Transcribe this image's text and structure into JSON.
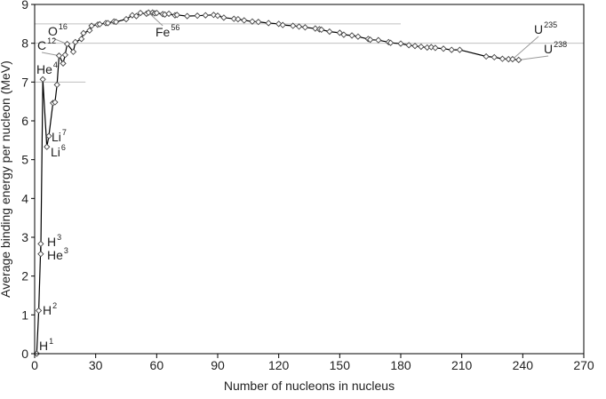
{
  "chart_data": {
    "type": "scatter",
    "title": "",
    "xlabel": "Number of nucleons in nucleus",
    "ylabel": "Average binding energy per nucleon (MeV)",
    "xlim": [
      0,
      270
    ],
    "ylim": [
      0,
      9
    ],
    "xticks": [
      "0",
      "30",
      "60",
      "90",
      "120",
      "150",
      "180",
      "210",
      "240",
      "270"
    ],
    "yticks": [
      "0",
      "1",
      "2",
      "3",
      "4",
      "5",
      "6",
      "7",
      "8",
      "9"
    ],
    "grid": "partial horizontal reference lines",
    "legend": "none",
    "colors": {
      "line": "#000000",
      "marker_fill": "#ffffff",
      "marker_stroke": "#444444",
      "gridline": "#c0c0c0",
      "leader": "#9a9a9a"
    },
    "series": [
      {
        "x": [
          1,
          2,
          3,
          3,
          4,
          6,
          7,
          9,
          10,
          11,
          12,
          14,
          15,
          16,
          19,
          20,
          23,
          24,
          27,
          28,
          31,
          32,
          35,
          36,
          39,
          40,
          45,
          48,
          50,
          52,
          55,
          56,
          58,
          59,
          60,
          63,
          64,
          66,
          69,
          70,
          75,
          80,
          84,
          88,
          90,
          93,
          98,
          100,
          103,
          107,
          110,
          115,
          120,
          122,
          127,
          130,
          133,
          138,
          140,
          141,
          145,
          150,
          152,
          156,
          159,
          164,
          165,
          169,
          174,
          175,
          180,
          184,
          187,
          190,
          193,
          195,
          197,
          201,
          205,
          209,
          222,
          226,
          230,
          233,
          235,
          238
        ],
        "y": [
          0,
          1.11,
          2.83,
          2.57,
          7.07,
          5.33,
          5.61,
          6.46,
          6.48,
          6.93,
          7.68,
          7.48,
          7.7,
          7.98,
          7.78,
          8.03,
          8.11,
          8.26,
          8.33,
          8.45,
          8.48,
          8.49,
          8.52,
          8.52,
          8.56,
          8.55,
          8.62,
          8.72,
          8.7,
          8.78,
          8.76,
          8.79,
          8.79,
          8.77,
          8.78,
          8.75,
          8.74,
          8.76,
          8.72,
          8.73,
          8.7,
          8.71,
          8.72,
          8.73,
          8.71,
          8.66,
          8.63,
          8.62,
          8.59,
          8.56,
          8.55,
          8.52,
          8.5,
          8.47,
          8.45,
          8.43,
          8.41,
          8.38,
          8.36,
          8.35,
          8.3,
          8.27,
          8.22,
          8.2,
          8.17,
          8.11,
          8.09,
          8.08,
          8.03,
          8.01,
          7.99,
          7.95,
          7.93,
          7.91,
          7.89,
          7.9,
          7.88,
          7.86,
          7.83,
          7.83,
          7.66,
          7.64,
          7.6,
          7.59,
          7.59,
          7.57
        ]
      }
    ],
    "annotations": [
      {
        "base": "H",
        "sup": "1"
      },
      {
        "base": "H",
        "sup": "2"
      },
      {
        "base": "H",
        "sup": "3"
      },
      {
        "base": "He",
        "sup": "3"
      },
      {
        "base": "He",
        "sup": "4"
      },
      {
        "base": "Li",
        "sup": "7"
      },
      {
        "base": "Li",
        "sup": "6"
      },
      {
        "base": "C",
        "sup": "12"
      },
      {
        "base": "O",
        "sup": "16"
      },
      {
        "base": "Fe",
        "sup": "56"
      },
      {
        "base": "U",
        "sup": "235"
      },
      {
        "base": "U",
        "sup": "238"
      }
    ]
  }
}
